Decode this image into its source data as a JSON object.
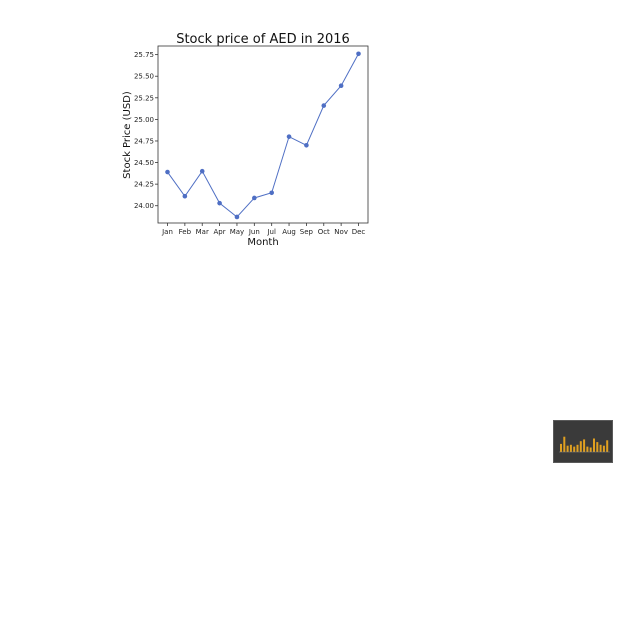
{
  "chart_data": {
    "type": "line",
    "title": "Stock price of AED in 2016",
    "xlabel": "Month",
    "ylabel": "Stock Price (USD)",
    "categories": [
      "Jan",
      "Feb",
      "Mar",
      "Apr",
      "May",
      "Jun",
      "Jul",
      "Aug",
      "Sep",
      "Oct",
      "Nov",
      "Dec"
    ],
    "series": [
      {
        "values": [
          24.39,
          24.11,
          24.4,
          24.03,
          23.87,
          24.09,
          24.15,
          24.8,
          24.7,
          25.16,
          25.39,
          25.76
        ]
      }
    ],
    "yticks": [
      "24.00",
      "24.25",
      "24.50",
      "24.75",
      "25.00",
      "25.25",
      "25.50",
      "25.75"
    ],
    "ylim": [
      23.8,
      25.85
    ],
    "grid": false,
    "line_color": "#4f6fc4"
  },
  "thumbnail": {
    "type": "bar",
    "background": "#3a3a3a",
    "bar_color": "#e0a020",
    "values": [
      0.45,
      0.85,
      0.35,
      0.4,
      0.3,
      0.4,
      0.6,
      0.7,
      0.3,
      0.25,
      0.75,
      0.55,
      0.4,
      0.35,
      0.65
    ]
  }
}
